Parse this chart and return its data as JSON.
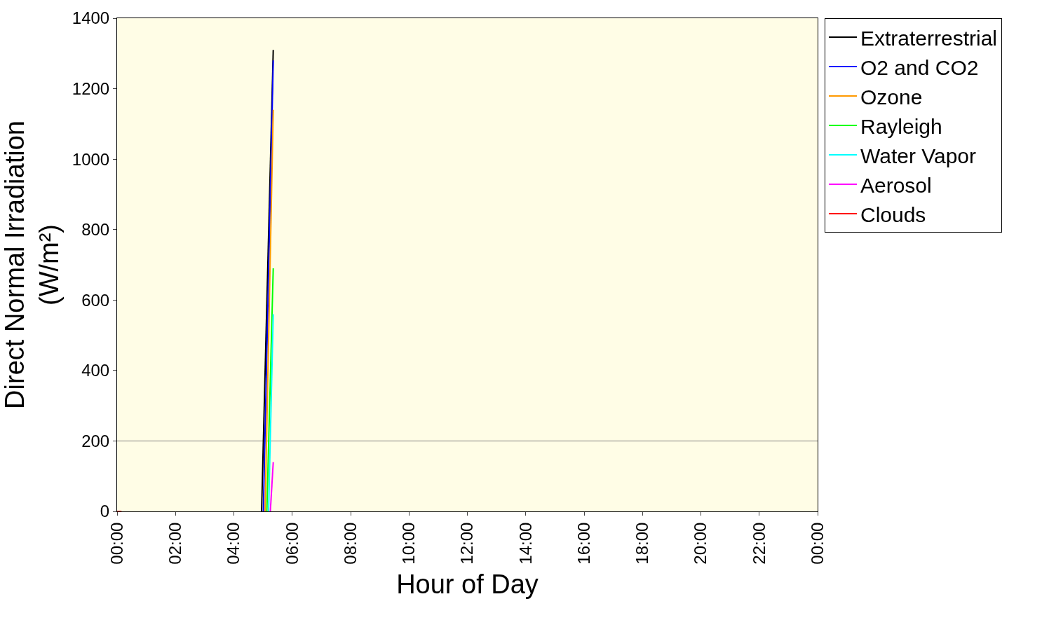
{
  "chart_data": {
    "type": "line",
    "xlabel": "Hour of Day",
    "ylabel": "Direct Normal Irradiation\n(W/m²)",
    "xlim": [
      0,
      24
    ],
    "ylim": [
      0,
      1400
    ],
    "xticks": [
      {
        "value": 0,
        "label": "00:00"
      },
      {
        "value": 2,
        "label": "02:00"
      },
      {
        "value": 4,
        "label": "04:00"
      },
      {
        "value": 6,
        "label": "06:00"
      },
      {
        "value": 8,
        "label": "08:00"
      },
      {
        "value": 10,
        "label": "10:00"
      },
      {
        "value": 12,
        "label": "12:00"
      },
      {
        "value": 14,
        "label": "14:00"
      },
      {
        "value": 16,
        "label": "16:00"
      },
      {
        "value": 18,
        "label": "18:00"
      },
      {
        "value": 20,
        "label": "20:00"
      },
      {
        "value": 22,
        "label": "22:00"
      },
      {
        "value": 24,
        "label": "00:00"
      }
    ],
    "yticks": [
      0,
      200,
      400,
      600,
      800,
      1000,
      1200,
      1400
    ],
    "series": [
      {
        "name": "Extraterrestrial",
        "color": "#000000",
        "x": [
          4.95,
          5.35
        ],
        "values": [
          0,
          1310
        ]
      },
      {
        "name": "O2 and CO2",
        "color": "#0000ff",
        "x": [
          5.01,
          5.35
        ],
        "values": [
          0,
          1280
        ]
      },
      {
        "name": "Ozone",
        "color": "#ff9900",
        "x": [
          5.07,
          5.35
        ],
        "values": [
          0,
          1140
        ]
      },
      {
        "name": "Rayleigh",
        "color": "#00ff00",
        "x": [
          5.13,
          5.35
        ],
        "values": [
          0,
          690
        ]
      },
      {
        "name": "Water Vapor",
        "color": "#00ffff",
        "x": [
          5.19,
          5.35
        ],
        "values": [
          0,
          560
        ]
      },
      {
        "name": "Aerosol",
        "color": "#ff00ff",
        "x": [
          5.25,
          5.35
        ],
        "values": [
          0,
          140
        ]
      },
      {
        "name": "Clouds",
        "color": "#ff0000",
        "x": [
          0,
          0.15
        ],
        "values": [
          0,
          0
        ]
      }
    ],
    "ref_lines": [
      {
        "axis": "y",
        "value": 200,
        "label": null,
        "color": "#808080"
      }
    ],
    "legend": "right",
    "grid": false,
    "marker": "none",
    "line_style": "solid"
  }
}
